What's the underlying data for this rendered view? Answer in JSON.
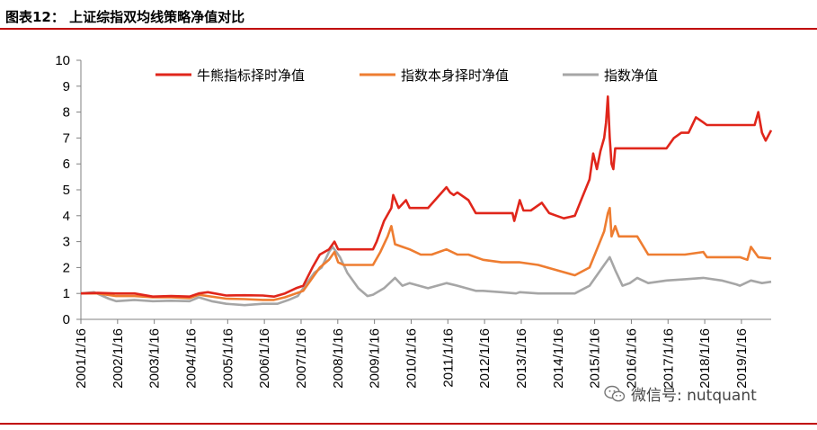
{
  "header": {
    "figure_title": "图表12：  上证综指双均线策略净值对比"
  },
  "watermark": {
    "text": "微信号: nutquant",
    "icon": "wechat-icon"
  },
  "chart_data": {
    "type": "line",
    "title": "",
    "xlabel": "",
    "ylabel": "",
    "ylim": [
      0,
      10
    ],
    "yticks": [
      0,
      1,
      2,
      3,
      4,
      5,
      6,
      7,
      8,
      9,
      10
    ],
    "xlim": [
      2001.04,
      2019.85
    ],
    "categories": [
      "2001/1/16",
      "2002/1/16",
      "2003/1/16",
      "2004/1/16",
      "2005/1/16",
      "2006/1/16",
      "2007/1/16",
      "2008/1/16",
      "2009/1/16",
      "2010/1/16",
      "2011/1/16",
      "2012/1/16",
      "2013/1/16",
      "2014/1/16",
      "2015/1/16",
      "2016/1/16",
      "2017/1/16",
      "2018/1/16",
      "2019/1/16"
    ],
    "grid": false,
    "legend_position": "top",
    "series": [
      {
        "name": "牛熊指标择时净值",
        "color": "#e0261b",
        "x": [
          2001.04,
          2001.5,
          2002.0,
          2002.5,
          2003.0,
          2003.5,
          2004.0,
          2004.25,
          2004.5,
          2005.0,
          2005.5,
          2006.0,
          2006.3,
          2006.6,
          2006.9,
          2007.1,
          2007.35,
          2007.55,
          2007.8,
          2007.95,
          2008.05,
          2008.2,
          2008.5,
          2009.0,
          2009.1,
          2009.3,
          2009.5,
          2009.55,
          2009.7,
          2009.9,
          2010.0,
          2010.2,
          2010.3,
          2010.5,
          2011.0,
          2011.1,
          2011.2,
          2011.3,
          2011.6,
          2011.8,
          2012.0,
          2012.5,
          2012.8,
          2012.85,
          2013.0,
          2013.1,
          2013.3,
          2013.6,
          2013.8,
          2014.0,
          2014.2,
          2014.5,
          2014.7,
          2014.9,
          2015.0,
          2015.1,
          2015.2,
          2015.3,
          2015.35,
          2015.4,
          2015.45,
          2015.5,
          2015.55,
          2015.6,
          2015.65,
          2015.7,
          2015.75,
          2016.0,
          2016.5,
          2016.8,
          2017.0,
          2017.2,
          2017.4,
          2017.6,
          2017.8,
          2018.0,
          2018.1,
          2018.3,
          2018.6,
          2018.8,
          2019.0,
          2019.1,
          2019.2,
          2019.3,
          2019.4,
          2019.5,
          2019.6,
          2019.7,
          2019.85
        ],
        "values": [
          1.0,
          1.02,
          1.0,
          1.0,
          0.88,
          0.9,
          0.88,
          1.0,
          1.05,
          0.92,
          0.93,
          0.92,
          0.88,
          1.0,
          1.2,
          1.3,
          2.0,
          2.5,
          2.7,
          3.0,
          2.7,
          2.7,
          2.7,
          2.7,
          3.0,
          3.8,
          4.3,
          4.8,
          4.3,
          4.6,
          4.3,
          4.3,
          4.3,
          4.3,
          5.1,
          4.9,
          4.8,
          4.9,
          4.6,
          4.1,
          4.1,
          4.1,
          4.1,
          3.8,
          4.6,
          4.2,
          4.2,
          4.5,
          4.1,
          4.0,
          3.9,
          4.0,
          4.7,
          5.4,
          6.4,
          5.8,
          6.5,
          7.0,
          7.6,
          8.6,
          7.0,
          6.0,
          5.8,
          6.6,
          6.6,
          6.6,
          6.6,
          6.6,
          6.6,
          6.6,
          6.6,
          7.0,
          7.2,
          7.2,
          7.8,
          7.6,
          7.5,
          7.5,
          7.5,
          7.5,
          7.5,
          7.5,
          7.5,
          7.5,
          7.5,
          8.0,
          7.2,
          6.9,
          7.3
        ]
      },
      {
        "name": "指数本身择时净值",
        "color": "#ee7d31",
        "x": [
          2001.04,
          2001.5,
          2002.0,
          2002.5,
          2003.0,
          2003.5,
          2004.0,
          2004.25,
          2004.5,
          2005.0,
          2005.5,
          2006.0,
          2006.3,
          2006.6,
          2006.9,
          2007.1,
          2007.35,
          2007.55,
          2007.8,
          2007.95,
          2008.05,
          2008.2,
          2008.5,
          2009.0,
          2009.2,
          2009.4,
          2009.5,
          2009.6,
          2009.8,
          2010.0,
          2010.3,
          2010.6,
          2011.0,
          2011.3,
          2011.6,
          2012.0,
          2012.5,
          2013.0,
          2013.5,
          2014.0,
          2014.5,
          2014.9,
          2015.1,
          2015.3,
          2015.4,
          2015.45,
          2015.5,
          2015.6,
          2015.7,
          2016.0,
          2016.2,
          2016.5,
          2016.8,
          2017.0,
          2017.5,
          2018.0,
          2018.1,
          2018.5,
          2019.0,
          2019.2,
          2019.3,
          2019.5,
          2019.85
        ],
        "values": [
          1.0,
          1.0,
          0.9,
          0.9,
          0.85,
          0.85,
          0.82,
          0.95,
          0.9,
          0.8,
          0.78,
          0.75,
          0.75,
          0.85,
          1.0,
          1.1,
          1.6,
          2.0,
          2.3,
          2.6,
          2.2,
          2.1,
          2.1,
          2.1,
          2.6,
          3.2,
          3.6,
          2.9,
          2.8,
          2.7,
          2.5,
          2.5,
          2.7,
          2.5,
          2.5,
          2.3,
          2.2,
          2.2,
          2.1,
          1.9,
          1.7,
          2.0,
          2.7,
          3.4,
          4.1,
          4.3,
          3.2,
          3.6,
          3.2,
          3.2,
          3.2,
          2.5,
          2.5,
          2.5,
          2.5,
          2.6,
          2.4,
          2.4,
          2.4,
          2.3,
          2.8,
          2.4,
          2.35
        ]
      },
      {
        "name": "指数净值",
        "color": "#a6a6a6",
        "x": [
          2001.04,
          2001.4,
          2001.8,
          2002.0,
          2002.5,
          2003.0,
          2003.5,
          2004.0,
          2004.25,
          2004.6,
          2005.0,
          2005.5,
          2006.0,
          2006.4,
          2006.7,
          2006.95,
          2007.1,
          2007.4,
          2007.6,
          2007.8,
          2007.9,
          2008.1,
          2008.3,
          2008.6,
          2008.85,
          2009.0,
          2009.3,
          2009.6,
          2009.8,
          2010.0,
          2010.5,
          2011.0,
          2011.3,
          2011.8,
          2012.0,
          2012.5,
          2012.9,
          2013.0,
          2013.5,
          2014.0,
          2014.5,
          2014.9,
          2015.1,
          2015.3,
          2015.45,
          2015.6,
          2015.8,
          2016.0,
          2016.2,
          2016.5,
          2017.0,
          2017.5,
          2018.0,
          2018.5,
          2018.9,
          2019.0,
          2019.3,
          2019.6,
          2019.85
        ],
        "values": [
          1.0,
          1.05,
          0.8,
          0.7,
          0.75,
          0.7,
          0.72,
          0.7,
          0.85,
          0.7,
          0.6,
          0.55,
          0.6,
          0.6,
          0.75,
          0.9,
          1.2,
          1.8,
          2.0,
          2.6,
          2.8,
          2.4,
          1.8,
          1.2,
          0.9,
          0.95,
          1.2,
          1.6,
          1.3,
          1.4,
          1.2,
          1.4,
          1.3,
          1.1,
          1.1,
          1.05,
          1.0,
          1.05,
          1.0,
          1.0,
          1.0,
          1.3,
          1.7,
          2.1,
          2.4,
          1.9,
          1.3,
          1.4,
          1.6,
          1.4,
          1.5,
          1.55,
          1.6,
          1.5,
          1.35,
          1.3,
          1.5,
          1.4,
          1.45
        ]
      }
    ]
  }
}
